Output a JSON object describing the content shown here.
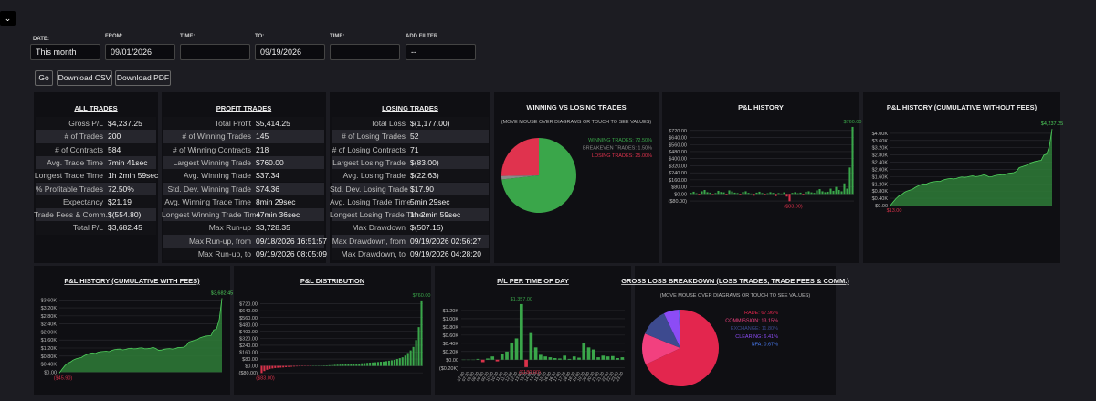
{
  "filters": {
    "date_label": "DATE:",
    "date_value": "This month",
    "from_label": "FROM:",
    "from_value": "09/01/2026",
    "time_label": "TIME:",
    "to_label": "TO:",
    "to_value": "09/19/2026",
    "time2_label": "TIME:",
    "add_filter_label": "ADD FILTER",
    "add_filter_value": "--"
  },
  "buttons": [
    "Go",
    "Download CSV",
    "Download PDF"
  ],
  "tables": [
    {
      "title": "ALL TRADES",
      "rows": [
        [
          "Gross P/L",
          "$4,237.25"
        ],
        [
          "# of Trades",
          "200"
        ],
        [
          "# of Contracts",
          "584"
        ],
        [
          "Avg. Trade Time",
          "7min 41sec"
        ],
        [
          "Longest Trade Time",
          "1h 2min 59sec"
        ],
        [
          "% Profitable Trades",
          "72.50%"
        ],
        [
          "Expectancy",
          "$21.19"
        ],
        [
          "Trade Fees & Comm.",
          "$(554.80)"
        ],
        [
          "Total P/L",
          "$3,682.45"
        ]
      ]
    },
    {
      "title": "PROFIT TRADES",
      "rows": [
        [
          "Total Profit",
          "$5,414.25"
        ],
        [
          "# of Winning Trades",
          "145"
        ],
        [
          "# of Winning Contracts",
          "218"
        ],
        [
          "Largest Winning Trade",
          "$760.00"
        ],
        [
          "Avg. Winning Trade",
          "$37.34"
        ],
        [
          "Std. Dev. Winning Trade",
          "$74.36"
        ],
        [
          "Avg. Winning Trade Time",
          "8min 29sec"
        ],
        [
          "Longest Winning Trade Time",
          "47min 36sec"
        ],
        [
          "Max Run-up",
          "$3,728.35"
        ],
        [
          "Max Run-up, from",
          "09/18/2026 16:51:57"
        ],
        [
          "Max Run-up, to",
          "09/19/2026 08:05:09"
        ]
      ]
    },
    {
      "title": "LOSING TRADES",
      "rows": [
        [
          "Total Loss",
          "$(1,177.00)"
        ],
        [
          "# of Losing Trades",
          "52"
        ],
        [
          "# of Losing Contracts",
          "71"
        ],
        [
          "Largest Losing Trade",
          "$(83.00)"
        ],
        [
          "Avg. Losing Trade",
          "$(22.63)"
        ],
        [
          "Std. Dev. Losing Trade",
          "$17.90"
        ],
        [
          "Avg. Losing Trade Time",
          "5min 29sec"
        ],
        [
          "Longest Losing Trade Time",
          "1h 2min 59sec"
        ],
        [
          "Max Drawdown",
          "$(507.15)"
        ],
        [
          "Max Drawdown, from",
          "09/19/2026 02:56:27"
        ],
        [
          "Max Drawdown, to",
          "09/19/2026 04:28:20"
        ]
      ]
    }
  ],
  "charts": [
    {
      "type": "pie",
      "title": "WINNING VS LOSING TRADES",
      "subtitle": "(MOVE MOUSE OVER DIAGRAMS OR TOUCH TO SEE VALUES)",
      "values": [
        72.5,
        1.5,
        25
      ],
      "value_labels": [
        "WINNING TRADES: 72.50%",
        "BREAKEVEN TRADES: 1.50%",
        "LOSING TRADES: 25.00%"
      ],
      "colors": [
        "#3aa64a",
        "#8a8a8a",
        "#e0334e"
      ]
    },
    {
      "type": "bar",
      "title": "P&L HISTORY",
      "max_label": "$760.00",
      "min_label": "($83.00)",
      "colors": {
        "positive": "#3aa64a",
        "negative": "#d9324a"
      },
      "values": [
        12,
        25,
        8,
        -10,
        30,
        45,
        20,
        15,
        -5,
        10,
        35,
        22,
        18,
        -12,
        40,
        28,
        15,
        10,
        -8,
        22,
        30,
        12,
        5,
        -20,
        15,
        25,
        10,
        -15,
        8,
        20,
        12,
        -25,
        10,
        5,
        18,
        -30,
        -83,
        12,
        20,
        8,
        15,
        -10,
        25,
        30,
        18,
        12,
        40,
        55,
        30,
        20,
        25,
        60,
        35,
        80,
        45,
        30,
        120,
        60,
        300,
        760
      ],
      "ylim": [
        -100,
        780
      ],
      "yticks": [
        {
          "value": 720,
          "label": "$720.00"
        },
        {
          "value": 640,
          "label": "$640.00"
        },
        {
          "value": 560,
          "label": "$560.00"
        },
        {
          "value": 480,
          "label": "$480.00"
        },
        {
          "value": 400,
          "label": "$400.00"
        },
        {
          "value": 320,
          "label": "$320.00"
        },
        {
          "value": 240,
          "label": "$240.00"
        },
        {
          "value": 160,
          "label": "$160.00"
        },
        {
          "value": 80,
          "label": "$80.00"
        },
        {
          "value": 0,
          "label": "$0.00"
        },
        {
          "value": -80,
          "label": "($80.00)"
        }
      ],
      "grid": true
    },
    {
      "type": "area",
      "title": "P&L HISTORY (CUMULATIVE WITHOUT FEES)",
      "max_label": "$4,237.25",
      "min_label": "$13.00",
      "colors": {
        "positive": "#2e7d38",
        "negative": "#d9324a",
        "line": "#4fd05c"
      },
      "values": [
        13,
        200,
        380,
        520,
        600,
        720,
        800,
        850,
        900,
        1000,
        1080,
        1150,
        1200,
        1180,
        1250,
        1300,
        1320,
        1340,
        1330,
        1400,
        1450,
        1480,
        1500,
        1470,
        1500,
        1550,
        1580,
        1560,
        1580,
        1620,
        1640,
        1600,
        1620,
        1650,
        1700,
        1660,
        1580,
        1600,
        1650,
        1680,
        1700,
        1690,
        1720,
        1780,
        1800,
        1820,
        1900,
        2100,
        2150,
        2200,
        2250,
        2350,
        2400,
        2450,
        2480,
        2500,
        2800,
        2850,
        3300,
        4237.25
      ],
      "ylim": [
        0,
        4300
      ],
      "yticks": [
        {
          "value": 4000,
          "label": "$4.00K"
        },
        {
          "value": 3600,
          "label": "$3.60K"
        },
        {
          "value": 3200,
          "label": "$3.20K"
        },
        {
          "value": 2800,
          "label": "$2.80K"
        },
        {
          "value": 2400,
          "label": "$2.40K"
        },
        {
          "value": 2000,
          "label": "$2.00K"
        },
        {
          "value": 1600,
          "label": "$1.60K"
        },
        {
          "value": 1200,
          "label": "$1.20K"
        },
        {
          "value": 800,
          "label": "$0.80K"
        },
        {
          "value": 400,
          "label": "$0.40K"
        },
        {
          "value": 0,
          "label": "$0.00"
        }
      ],
      "grid": true
    },
    {
      "type": "area",
      "title": "P&L HISTORY (CUMULATIVE WITH FEES)",
      "max_label": "$3,682.45",
      "min_label": "($45.90)",
      "colors": {
        "positive": "#2e7d38",
        "negative": "#d9324a",
        "line": "#4fd05c"
      },
      "values": [
        -45.9,
        150,
        320,
        440,
        500,
        600,
        660,
        700,
        730,
        820,
        880,
        930,
        960,
        930,
        990,
        1020,
        1030,
        1040,
        1020,
        1080,
        1120,
        1140,
        1150,
        1110,
        1130,
        1170,
        1190,
        1160,
        1170,
        1200,
        1210,
        1160,
        1170,
        1190,
        1230,
        1180,
        1090,
        1100,
        1140,
        1160,
        1170,
        1150,
        1170,
        1220,
        1230,
        1240,
        1310,
        1500,
        1540,
        1580,
        1620,
        1710,
        1750,
        1790,
        1810,
        1820,
        2100,
        2140,
        2600,
        3682.45
      ],
      "ylim": [
        -120,
        3750
      ],
      "yticks": [
        {
          "value": 3600,
          "label": "$3.60K"
        },
        {
          "value": 3200,
          "label": "$3.20K"
        },
        {
          "value": 2800,
          "label": "$2.80K"
        },
        {
          "value": 2400,
          "label": "$2.40K"
        },
        {
          "value": 2000,
          "label": "$2.00K"
        },
        {
          "value": 1600,
          "label": "$1.60K"
        },
        {
          "value": 1200,
          "label": "$1.20K"
        },
        {
          "value": 800,
          "label": "$0.80K"
        },
        {
          "value": 400,
          "label": "$0.40K"
        },
        {
          "value": 0,
          "label": "$0.00"
        }
      ],
      "grid": true
    },
    {
      "type": "bar",
      "title": "P&L DISTRIBUTION",
      "max_label": "$760.00",
      "min_label": "($83.00)",
      "colors": {
        "positive": "#3aa64a",
        "negative": "#d9324a"
      },
      "values": [
        -83,
        -60,
        -45,
        -35,
        -30,
        -25,
        -22,
        -20,
        -18,
        -15,
        -12,
        -10,
        -8,
        -6,
        -5,
        -4,
        -3,
        -2,
        -1,
        0,
        2,
        3,
        4,
        5,
        6,
        8,
        10,
        12,
        14,
        15,
        16,
        18,
        20,
        22,
        24,
        25,
        27,
        30,
        32,
        35,
        38,
        40,
        42,
        45,
        48,
        50,
        55,
        60,
        65,
        70,
        80,
        90,
        100,
        120,
        150,
        180,
        220,
        300,
        450,
        760
      ],
      "ylim": [
        -100,
        780
      ],
      "yticks": [
        {
          "value": 720,
          "label": "$720.00"
        },
        {
          "value": 640,
          "label": "$640.00"
        },
        {
          "value": 560,
          "label": "$560.00"
        },
        {
          "value": 480,
          "label": "$480.00"
        },
        {
          "value": 400,
          "label": "$400.00"
        },
        {
          "value": 320,
          "label": "$320.00"
        },
        {
          "value": 240,
          "label": "$240.00"
        },
        {
          "value": 160,
          "label": "$160.00"
        },
        {
          "value": 80,
          "label": "$80.00"
        },
        {
          "value": 0,
          "label": "$0.00"
        },
        {
          "value": -80,
          "label": "($80.00)"
        }
      ],
      "grid": true
    },
    {
      "type": "bar",
      "title": "P/L PER TIME OF DAY",
      "max_label": "$1,357.00",
      "min_label": "($180.00)",
      "colors": {
        "positive": "#3aa64a",
        "negative": "#d9324a"
      },
      "categories": [
        "07:00",
        "07:30",
        "08:00",
        "08:30",
        "09:00",
        "09:30",
        "10:00",
        "10:30",
        "11:00",
        "11:30",
        "12:00",
        "12:30",
        "13:00",
        "13:30",
        "14:00",
        "14:30",
        "15:00",
        "15:30",
        "16:00",
        "16:30",
        "17:00",
        "17:30",
        "18:00",
        "18:30",
        "19:00",
        "19:30",
        "20:00",
        "20:30",
        "21:00",
        "21:30",
        "22:00",
        "22:30",
        "23:00",
        "23:30"
      ],
      "values": [
        0,
        0,
        0,
        20,
        -60,
        30,
        80,
        -40,
        150,
        200,
        420,
        520,
        1357,
        -180,
        650,
        300,
        120,
        80,
        60,
        40,
        30,
        100,
        20,
        80,
        50,
        400,
        300,
        250,
        60,
        100,
        80,
        90,
        40,
        60
      ],
      "ylim": [
        -250,
        1400
      ],
      "yticks": [
        {
          "value": 1200,
          "label": "$1.20K"
        },
        {
          "value": 1000,
          "label": "$1.00K"
        },
        {
          "value": 800,
          "label": "$0.80K"
        },
        {
          "value": 600,
          "label": "$0.60K"
        },
        {
          "value": 400,
          "label": "$0.40K"
        },
        {
          "value": 200,
          "label": "$0.20K"
        },
        {
          "value": 0,
          "label": "$0.00"
        },
        {
          "value": -200,
          "label": "($0.20K)"
        }
      ],
      "grid": true
    },
    {
      "type": "pie",
      "title": "GROSS LOSS BREAKDOWN (LOSS TRADES, TRADE FEES & COMM.)",
      "subtitle": "(MOVE MOUSE OVER DIAGRAMS OR TOUCH TO SEE VALUES)",
      "values": [
        67.96,
        13.15,
        11.8,
        6.41,
        0.67
      ],
      "value_labels": [
        "TRADE: 67.96%",
        "COMMISSION: 13.15%",
        "EXCHANGE: 11.80%",
        "CLEARING: 6.41%",
        "NFA: 0.67%"
      ],
      "colors": [
        "#e3264e",
        "#f2407f",
        "#3d4a8f",
        "#8c4cf5",
        "#4a7bf0"
      ]
    }
  ]
}
